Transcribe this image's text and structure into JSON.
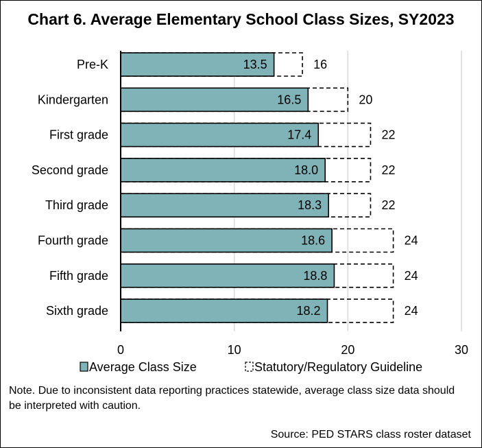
{
  "title": "Chart 6. Average Elementary School Class Sizes, SY2023",
  "note": "Note. Due to inconsistent data reporting practices statewide, average class size data should be interpreted with caution.",
  "source": "Source: PED STARS class roster dataset",
  "colors": {
    "bar_fill": "#7fb3b7",
    "bar_stroke": "#000000",
    "guideline_stroke": "#000000",
    "grid": "#d9d9d9",
    "axis": "#000000"
  },
  "chart_data": {
    "type": "bar",
    "orientation": "horizontal",
    "categories": [
      "Pre-K",
      "Kindergarten",
      "First grade",
      "Second grade",
      "Third grade",
      "Fourth grade",
      "Fifth grade",
      "Sixth grade"
    ],
    "series": [
      {
        "name": "Average Class Size",
        "values": [
          13.5,
          16.5,
          17.4,
          18.0,
          18.3,
          18.6,
          18.8,
          18.2
        ],
        "value_labels": [
          "13.5",
          "16.5",
          "17.4",
          "18.0",
          "18.3",
          "18.6",
          "18.8",
          "18.2"
        ]
      },
      {
        "name": "Statutory/Regulatory Guideline",
        "values": [
          16,
          20,
          22,
          22,
          22,
          24,
          24,
          24
        ],
        "value_labels": [
          "16",
          "20",
          "22",
          "22",
          "22",
          "24",
          "24",
          "24"
        ]
      }
    ],
    "xlim": [
      0,
      30
    ],
    "xticks": [
      0,
      10,
      20,
      30
    ],
    "xtick_labels": [
      "0",
      "10",
      "20",
      "30"
    ],
    "grid": true,
    "legend_position": "bottom"
  }
}
